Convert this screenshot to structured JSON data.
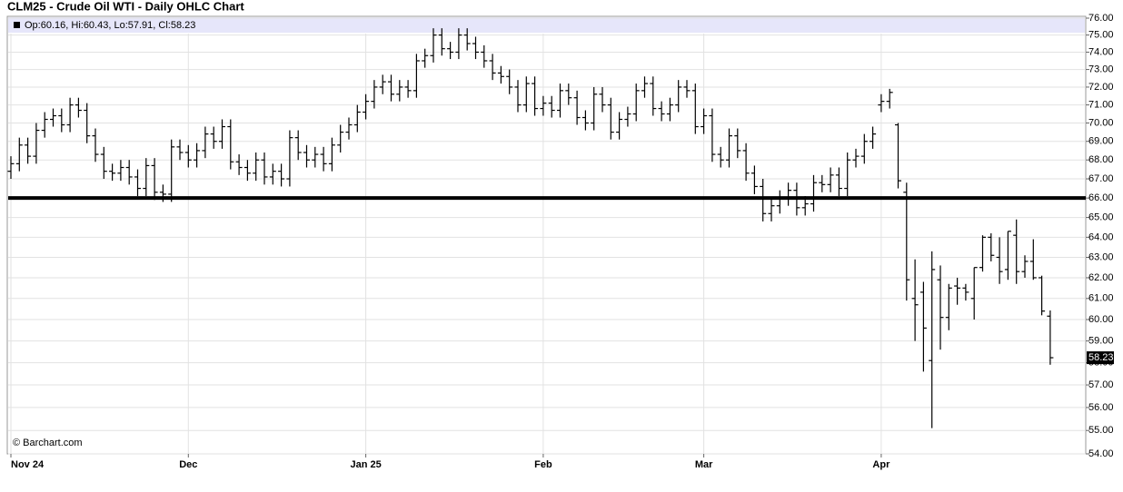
{
  "chart_data": {
    "type": "ohlc",
    "title": "CLM25 - Crude Oil WTI - Daily OHLC Chart",
    "header": "Op:60.16, Hi:60.43, Lo:57.91, Cl:58.23",
    "watermark": "© Barchart.com",
    "last_label": "58.23",
    "reference_line": 66,
    "log_scale": true,
    "grid": true,
    "color": "#000000",
    "categories": [
      "Nov 24",
      null,
      null,
      null,
      null,
      null,
      null,
      null,
      null,
      null,
      null,
      null,
      null,
      null,
      null,
      null,
      null,
      null,
      null,
      null,
      null,
      "Dec",
      null,
      null,
      null,
      null,
      null,
      null,
      null,
      null,
      null,
      null,
      null,
      null,
      null,
      null,
      null,
      null,
      null,
      null,
      null,
      null,
      "Jan 25",
      null,
      null,
      null,
      null,
      null,
      null,
      null,
      null,
      null,
      null,
      null,
      null,
      null,
      null,
      null,
      null,
      null,
      null,
      null,
      null,
      "Feb",
      null,
      null,
      null,
      null,
      null,
      null,
      null,
      null,
      null,
      null,
      null,
      null,
      null,
      null,
      null,
      null,
      null,
      null,
      "Mar",
      null,
      null,
      null,
      null,
      null,
      null,
      null,
      null,
      null,
      null,
      null,
      null,
      null,
      null,
      null,
      null,
      null,
      null,
      null,
      null,
      "Apr",
      null,
      null,
      null,
      null,
      null,
      null,
      null,
      null,
      null,
      null,
      null,
      null,
      null,
      null,
      null,
      null,
      null,
      null,
      null,
      null
    ],
    "open": [
      67.4,
      67.8,
      68.8,
      68.2,
      69.6,
      70.2,
      70.4,
      69.9,
      71.0,
      70.7,
      69.3,
      68.3,
      67.4,
      67.3,
      67.6,
      67.1,
      66.5,
      67.7,
      66.3,
      66.2,
      68.7,
      68.4,
      68.0,
      68.5,
      69.4,
      69.0,
      69.8,
      67.9,
      67.6,
      67.3,
      68.0,
      67.1,
      67.4,
      67.0,
      69.2,
      68.4,
      68.0,
      68.3,
      67.8,
      68.8,
      69.5,
      69.9,
      70.6,
      71.2,
      72.0,
      72.3,
      71.6,
      72.0,
      71.8,
      73.5,
      73.8,
      75.0,
      74.2,
      74.0,
      75.0,
      74.5,
      74.0,
      73.5,
      72.8,
      72.6,
      72.0,
      71.0,
      72.2,
      70.8,
      71.1,
      70.7,
      71.8,
      71.4,
      70.3,
      70.0,
      71.6,
      71.0,
      69.5,
      70.2,
      70.5,
      71.8,
      72.2,
      70.8,
      70.5,
      71.0,
      72.0,
      71.8,
      69.8,
      70.4,
      68.3,
      68.0,
      69.3,
      68.5,
      67.3,
      66.6,
      65.2,
      65.6,
      66.0,
      66.4,
      65.5,
      65.7,
      66.8,
      66.7,
      67.2,
      66.5,
      68.0,
      68.2,
      69.0,
      71.0,
      71.2,
      69.9,
      66.3,
      61.0,
      61.3,
      58.1,
      61.9,
      60.1,
      61.6,
      61.5,
      61.0,
      62.5,
      64.0,
      63.0,
      62.4,
      64.1,
      62.3,
      62.8,
      62.0,
      60.16
    ],
    "high": [
      68.2,
      69.2,
      69.2,
      70.0,
      70.6,
      70.8,
      70.8,
      71.4,
      71.4,
      71.1,
      69.7,
      68.7,
      67.8,
      68.0,
      68.0,
      67.5,
      68.1,
      68.1,
      66.7,
      69.1,
      69.1,
      68.8,
      68.9,
      69.8,
      69.8,
      70.2,
      70.2,
      68.3,
      68.0,
      68.4,
      68.4,
      67.8,
      67.8,
      69.6,
      69.6,
      68.8,
      68.7,
      68.7,
      69.2,
      69.9,
      70.3,
      71.0,
      71.6,
      72.4,
      72.7,
      72.7,
      72.4,
      72.4,
      73.9,
      74.2,
      75.4,
      75.4,
      74.6,
      75.4,
      75.4,
      74.9,
      74.4,
      73.9,
      73.2,
      73.0,
      72.4,
      72.6,
      72.6,
      71.5,
      71.5,
      72.2,
      72.2,
      71.8,
      70.7,
      72.0,
      72.0,
      71.4,
      70.6,
      70.9,
      72.2,
      72.6,
      72.6,
      71.2,
      71.4,
      72.4,
      72.4,
      72.2,
      70.8,
      70.8,
      68.7,
      69.7,
      69.7,
      68.9,
      67.7,
      67.0,
      66.0,
      66.4,
      66.8,
      66.8,
      66.1,
      67.2,
      67.2,
      67.6,
      67.6,
      68.4,
      68.6,
      69.4,
      69.8,
      71.6,
      71.9,
      70.0,
      66.8,
      62.9,
      61.8,
      63.3,
      62.6,
      61.7,
      62.0,
      61.7,
      62.5,
      64.1,
      64.2,
      64.0,
      64.3,
      64.9,
      63.1,
      63.9,
      62.1,
      60.43
    ],
    "low": [
      67.0,
      67.4,
      67.8,
      67.8,
      69.2,
      69.8,
      69.5,
      69.5,
      70.3,
      68.9,
      67.9,
      67.0,
      66.9,
      66.9,
      66.7,
      66.1,
      66.1,
      65.9,
      65.8,
      65.8,
      68.0,
      67.6,
      67.6,
      68.1,
      68.6,
      68.6,
      67.5,
      67.2,
      66.9,
      66.9,
      66.7,
      66.7,
      66.6,
      66.6,
      68.0,
      67.6,
      67.6,
      67.4,
      67.4,
      68.4,
      69.1,
      69.5,
      70.2,
      70.8,
      71.6,
      71.2,
      71.2,
      71.4,
      71.4,
      73.1,
      73.4,
      73.8,
      73.6,
      73.6,
      74.1,
      73.6,
      73.1,
      72.4,
      72.2,
      71.6,
      70.6,
      70.6,
      70.4,
      70.4,
      70.3,
      70.3,
      71.0,
      69.9,
      69.6,
      69.6,
      70.6,
      69.1,
      69.1,
      69.8,
      70.1,
      71.4,
      70.4,
      70.1,
      70.1,
      70.6,
      71.4,
      69.4,
      69.4,
      67.9,
      67.6,
      67.6,
      68.1,
      66.9,
      66.2,
      64.8,
      64.8,
      65.2,
      65.6,
      65.1,
      65.1,
      65.3,
      66.3,
      66.3,
      66.1,
      66.1,
      67.6,
      67.8,
      68.6,
      70.6,
      70.8,
      66.5,
      60.9,
      59.0,
      57.6,
      55.1,
      58.6,
      59.5,
      60.7,
      60.9,
      60.0,
      62.3,
      62.8,
      61.7,
      61.9,
      61.7,
      62.0,
      61.9,
      60.2,
      57.91
    ],
    "close": [
      67.8,
      68.8,
      68.2,
      69.6,
      70.2,
      70.4,
      69.9,
      71.0,
      70.7,
      69.3,
      68.3,
      67.4,
      67.3,
      67.6,
      67.1,
      66.5,
      67.7,
      66.3,
      66.2,
      68.7,
      68.4,
      68.0,
      68.5,
      69.4,
      69.0,
      69.8,
      67.9,
      67.6,
      67.3,
      68.0,
      67.1,
      67.4,
      67.0,
      69.2,
      68.4,
      68.0,
      68.3,
      67.8,
      68.8,
      69.5,
      69.9,
      70.6,
      71.2,
      72.0,
      72.3,
      71.6,
      72.0,
      71.8,
      73.5,
      73.8,
      75.0,
      74.2,
      74.0,
      75.0,
      74.5,
      74.0,
      73.5,
      72.8,
      72.6,
      72.0,
      71.0,
      72.2,
      70.8,
      71.1,
      70.7,
      71.8,
      71.4,
      70.3,
      70.0,
      71.6,
      71.0,
      69.5,
      70.2,
      70.5,
      71.8,
      72.2,
      70.8,
      70.5,
      71.0,
      72.0,
      71.8,
      69.8,
      70.4,
      68.3,
      68.0,
      69.3,
      68.5,
      67.3,
      66.6,
      65.2,
      65.6,
      66.0,
      66.4,
      65.5,
      65.7,
      66.8,
      66.7,
      67.2,
      66.5,
      68.0,
      68.2,
      69.0,
      69.4,
      71.2,
      71.7,
      66.9,
      61.9,
      60.7,
      59.6,
      62.4,
      60.1,
      61.5,
      61.5,
      61.3,
      62.5,
      64.0,
      63.1,
      62.3,
      64.3,
      62.3,
      62.8,
      62.0,
      60.4,
      58.23
    ],
    "ylim": [
      54,
      76
    ],
    "yticks": [
      {
        "value": 54,
        "label": "54.00"
      },
      {
        "value": 55,
        "label": "55.00"
      },
      {
        "value": 56,
        "label": "56.00"
      },
      {
        "value": 57,
        "label": "57.00"
      },
      {
        "value": 58,
        "label": "58.00"
      },
      {
        "value": 59,
        "label": "59.00"
      },
      {
        "value": 60,
        "label": "60.00"
      },
      {
        "value": 61,
        "label": "61.00"
      },
      {
        "value": 62,
        "label": "62.00"
      },
      {
        "value": 63,
        "label": "63.00"
      },
      {
        "value": 64,
        "label": "64.00"
      },
      {
        "value": 65,
        "label": "65.00"
      },
      {
        "value": 66,
        "label": "66.00"
      },
      {
        "value": 67,
        "label": "67.00"
      },
      {
        "value": 68,
        "label": "68.00"
      },
      {
        "value": 69,
        "label": "69.00"
      },
      {
        "value": 70,
        "label": "70.00"
      },
      {
        "value": 71,
        "label": "71.00"
      },
      {
        "value": 72,
        "label": "72.00"
      },
      {
        "value": 73,
        "label": "73.00"
      },
      {
        "value": 74,
        "label": "74.00"
      },
      {
        "value": 75,
        "label": "75.00"
      },
      {
        "value": 76,
        "label": "76.00"
      }
    ]
  }
}
